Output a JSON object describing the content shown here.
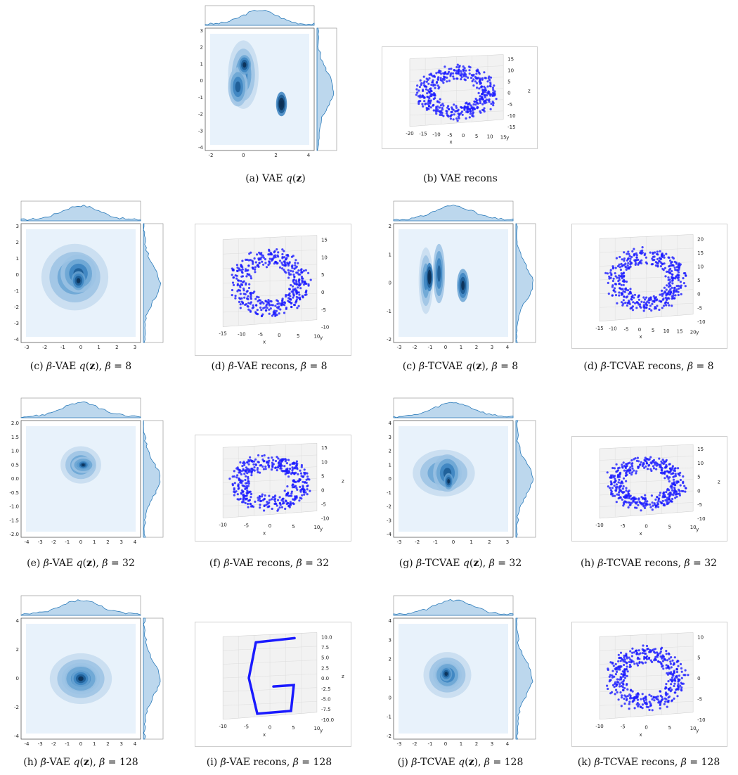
{
  "colors": {
    "kde": "#2b7bba",
    "kde_fill": "#bcd7ed",
    "scatter": "#1a1aff",
    "frame": "#000000"
  },
  "panels": [
    {
      "id": "a",
      "kind": "kde",
      "prefix": "(a) ",
      "model": "VAE",
      "beta": "",
      "xticks": [
        "-2",
        "0",
        "2",
        "4"
      ],
      "yticks": [
        "3",
        "2",
        "1",
        "0",
        "-1",
        "-2",
        "-3",
        "-4"
      ]
    },
    {
      "id": "b",
      "kind": "recon",
      "prefix": "(b) ",
      "model": "VAE",
      "beta": "",
      "xlabel": "x",
      "ylabel": "y",
      "zlabel": "z",
      "xticks": [
        "-20",
        "-15",
        "-10",
        "-5",
        "0",
        "5",
        "10",
        "15"
      ],
      "zticks": [
        "15",
        "10",
        "5",
        "0",
        "-5",
        "-10",
        "-15"
      ]
    },
    {
      "id": "c",
      "kind": "kde",
      "prefix": "(c) ",
      "model": "β-VAE",
      "beta": "8",
      "xticks": [
        "-3",
        "-2",
        "-1",
        "0",
        "1",
        "2",
        "3"
      ],
      "yticks": [
        "3",
        "2",
        "1",
        "0",
        "-1",
        "-2",
        "-3",
        "-4"
      ]
    },
    {
      "id": "d",
      "kind": "recon",
      "prefix": "(d) ",
      "model": "β-VAE",
      "beta": "8",
      "xlabel": "x",
      "ylabel": "y",
      "zlabel": "",
      "xticks": [
        "-15",
        "-10",
        "-5",
        "0",
        "5",
        "10"
      ],
      "zticks": [
        "15",
        "10",
        "5",
        "0",
        "-5",
        "-10"
      ]
    },
    {
      "id": "c2",
      "kind": "kde",
      "prefix": "(c) ",
      "model": "β-TCVAE",
      "beta": "8",
      "xticks": [
        "-3",
        "-2",
        "-1",
        "0",
        "1",
        "2",
        "3",
        "4"
      ],
      "yticks": [
        "2",
        "1",
        "0",
        "-1",
        "-2"
      ]
    },
    {
      "id": "d2",
      "kind": "recon",
      "prefix": "(d) ",
      "model": "β-TCVAE",
      "beta": "8",
      "xlabel": "x",
      "ylabel": "y",
      "zlabel": "",
      "xticks": [
        "-15",
        "-10",
        "-5",
        "0",
        "5",
        "10",
        "15",
        "20"
      ],
      "zticks": [
        "20",
        "15",
        "10",
        "5",
        "0",
        "-5",
        "-10"
      ]
    },
    {
      "id": "e",
      "kind": "kde",
      "prefix": "(e) ",
      "model": "β-VAE",
      "beta": "32",
      "xticks": [
        "-4",
        "-3",
        "-2",
        "-1",
        "0",
        "1",
        "2",
        "3",
        "4"
      ],
      "yticks": [
        "2.0",
        "1.5",
        "1.0",
        "0.5",
        "0.0",
        "-0.5",
        "-1.0",
        "-1.5",
        "-2.0"
      ]
    },
    {
      "id": "f",
      "kind": "recon",
      "prefix": "(f) ",
      "model": "β-VAE",
      "beta": "32",
      "xlabel": "x",
      "ylabel": "y",
      "zlabel": "z",
      "xticks": [
        "-10",
        "-5",
        "0",
        "5",
        "10"
      ],
      "zticks": [
        "15",
        "10",
        "5",
        "0",
        "-5",
        "-10"
      ]
    },
    {
      "id": "g",
      "kind": "kde",
      "prefix": "(g) ",
      "model": "β-TCVAE",
      "beta": "32",
      "xticks": [
        "-3",
        "-2",
        "-1",
        "0",
        "1",
        "2",
        "3"
      ],
      "yticks": [
        "4",
        "3",
        "2",
        "1",
        "0",
        "-1",
        "-2",
        "-3",
        "-4"
      ]
    },
    {
      "id": "h",
      "kind": "recon",
      "prefix": "(h) ",
      "model": "β-TCVAE",
      "beta": "32",
      "xlabel": "x",
      "ylabel": "y",
      "zlabel": "z",
      "xticks": [
        "-10",
        "-5",
        "0",
        "5",
        "10"
      ],
      "zticks": [
        "15",
        "10",
        "5",
        "0",
        "-5",
        "-10"
      ]
    },
    {
      "id": "h2",
      "kind": "kde",
      "prefix": "(h) ",
      "model": "β-VAE",
      "beta": "128",
      "xticks": [
        "-4",
        "-3",
        "-2",
        "-1",
        "0",
        "1",
        "2",
        "3",
        "4"
      ],
      "yticks": [
        "4",
        "2",
        "0",
        "-2",
        "-4"
      ]
    },
    {
      "id": "i",
      "kind": "recon",
      "prefix": "(i) ",
      "model": "β-VAE",
      "beta": "128",
      "xlabel": "x",
      "ylabel": "y",
      "zlabel": "z",
      "xticks": [
        "-10",
        "-5",
        "0",
        "5",
        "10"
      ],
      "zticks": [
        "10.0",
        "7.5",
        "5.0",
        "2.5",
        "0.0",
        "-2.5",
        "-5.0",
        "-7.5",
        "-10.0"
      ]
    },
    {
      "id": "j",
      "kind": "kde",
      "prefix": "(j) ",
      "model": "β-TCVAE",
      "beta": "128",
      "xticks": [
        "-3",
        "-2",
        "-1",
        "0",
        "1",
        "2",
        "3",
        "4"
      ],
      "yticks": [
        "4",
        "3",
        "2",
        "1",
        "0",
        "-1",
        "-2"
      ]
    },
    {
      "id": "k",
      "kind": "recon",
      "prefix": "(k) ",
      "model": "β-TCVAE",
      "beta": "128",
      "xlabel": "x",
      "ylabel": "y",
      "zlabel": "",
      "xticks": [
        "-10",
        "-5",
        "0",
        "5",
        "10"
      ],
      "zticks": [
        "10",
        "5",
        "0",
        "-5",
        "-10"
      ]
    }
  ]
}
